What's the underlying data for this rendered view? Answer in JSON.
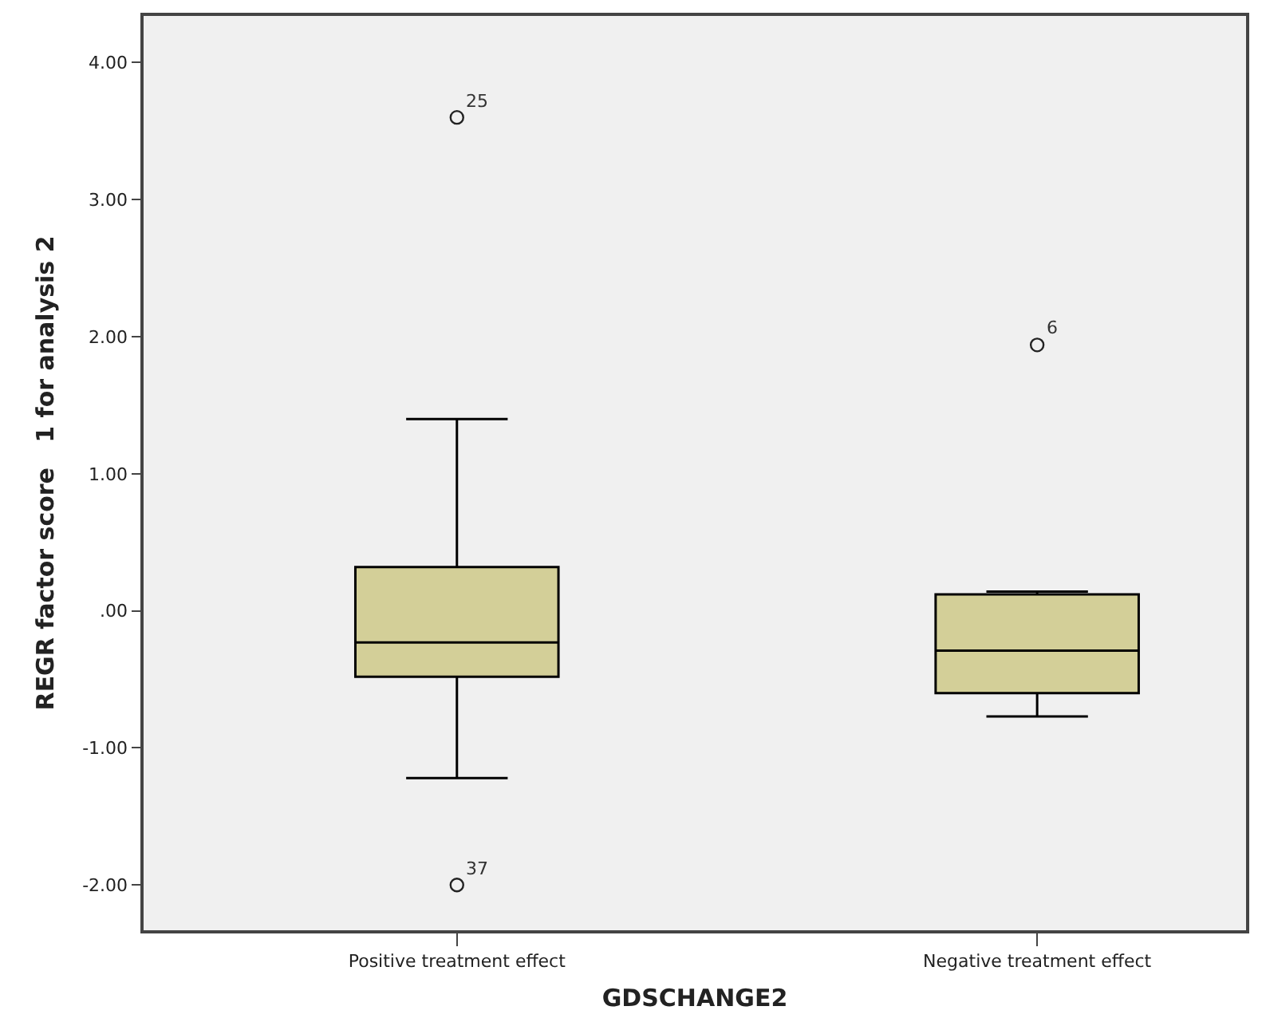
{
  "chart_data": {
    "type": "box",
    "xlabel": "GDSCHANGE2",
    "ylabel": "REGR factor score   1 for analysis 2",
    "categories": [
      "Positive treatment effect",
      "Negative treatment effect"
    ],
    "boxes": [
      {
        "low": -1.22,
        "q1": -0.48,
        "median": -0.23,
        "q3": 0.32,
        "high": 1.4
      },
      {
        "low": -0.77,
        "q1": -0.6,
        "median": -0.29,
        "q3": 0.12,
        "high": 0.14
      }
    ],
    "series": [
      {
        "type": "scatter",
        "x": [
          "Positive treatment effect",
          "Positive treatment effect",
          "Negative treatment effect"
        ],
        "values": [
          3.6,
          -2.0,
          1.94
        ],
        "color": "#222222"
      }
    ],
    "color": "#d3cf98",
    "ylim": [
      -2.33,
      4.34
    ],
    "yticks": [
      {
        "value": -2,
        "label": "-2.00"
      },
      {
        "value": -1,
        "label": "-1.00"
      },
      {
        "value": 0,
        "label": ".00"
      },
      {
        "value": 1,
        "label": "1.00"
      },
      {
        "value": 2,
        "label": "2.00"
      },
      {
        "value": 3,
        "label": "3.00"
      },
      {
        "value": 4,
        "label": "4.00"
      }
    ],
    "grid": false,
    "marker": "circle",
    "annotations": [
      {
        "text": "25",
        "x": "Positive treatment effect",
        "y": 3.6
      },
      {
        "text": "37",
        "x": "Positive treatment effect",
        "y": -2.0
      },
      {
        "text": "6",
        "x": "Negative treatment effect",
        "y": 1.94
      }
    ]
  }
}
